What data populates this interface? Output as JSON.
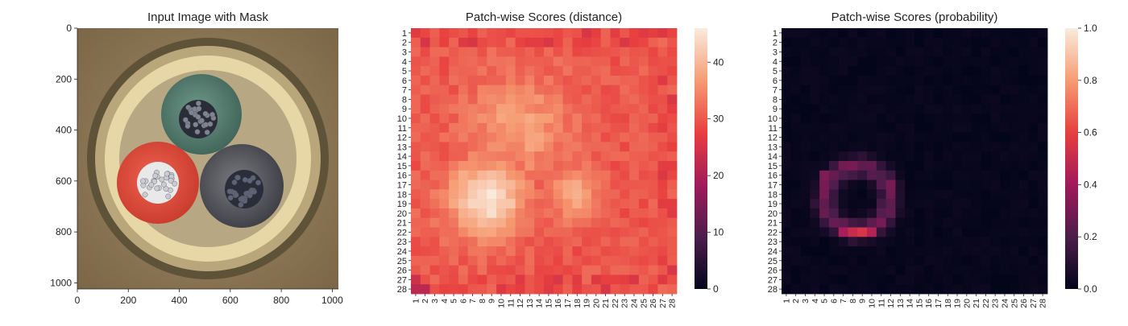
{
  "panels": [
    {
      "title": "Input Image with Mask",
      "image_description_icon": "cable-cross-section-photo",
      "x_ticks": [
        "0",
        "200",
        "400",
        "600",
        "800",
        "1000"
      ],
      "y_ticks": [
        "0",
        "200",
        "400",
        "600",
        "800",
        "1000"
      ],
      "xlim": [
        0,
        1024
      ],
      "ylim": [
        1024,
        0
      ]
    },
    {
      "title": "Patch-wise Scores (distance)",
      "colorbar_ticks": [
        "0",
        "10",
        "20",
        "30",
        "40"
      ],
      "colorbar_range": [
        0,
        46
      ]
    },
    {
      "title": "Patch-wise Scores (probability)",
      "colorbar_ticks": [
        "0.0",
        "0.2",
        "0.4",
        "0.6",
        "0.8",
        "1.0"
      ],
      "colorbar_range": [
        0,
        1
      ]
    }
  ],
  "chart_data": [
    {
      "type": "heatmap",
      "title": "Patch-wise Scores (distance)",
      "rows": [
        "1",
        "2",
        "3",
        "4",
        "5",
        "6",
        "7",
        "8",
        "9",
        "10",
        "11",
        "12",
        "13",
        "14",
        "15",
        "16",
        "17",
        "18",
        "19",
        "20",
        "21",
        "22",
        "23",
        "24",
        "25",
        "26",
        "27",
        "28"
      ],
      "cols": [
        "1",
        "2",
        "3",
        "4",
        "5",
        "6",
        "7",
        "8",
        "9",
        "10",
        "11",
        "12",
        "13",
        "14",
        "15",
        "16",
        "17",
        "18",
        "19",
        "20",
        "21",
        "22",
        "23",
        "24",
        "25",
        "26",
        "27",
        "28"
      ],
      "value_range": [
        0,
        46
      ],
      "model": {
        "baseline": 30,
        "blobs": [
          {
            "row": 18.5,
            "col": 8.5,
            "radius": 3.6,
            "peak": 45
          },
          {
            "row": 11,
            "col": 12,
            "radius": 5,
            "peak": 37
          },
          {
            "row": 18,
            "col": 17.5,
            "radius": 2.5,
            "peak": 38
          }
        ],
        "edge_value": 27
      }
    },
    {
      "type": "heatmap",
      "title": "Patch-wise Scores (probability)",
      "rows": [
        "1",
        "2",
        "3",
        "4",
        "5",
        "6",
        "7",
        "8",
        "9",
        "10",
        "11",
        "12",
        "13",
        "14",
        "15",
        "16",
        "17",
        "18",
        "19",
        "20",
        "21",
        "22",
        "23",
        "24",
        "25",
        "26",
        "27",
        "28"
      ],
      "cols": [
        "1",
        "2",
        "3",
        "4",
        "5",
        "6",
        "7",
        "8",
        "9",
        "10",
        "11",
        "12",
        "13",
        "14",
        "15",
        "16",
        "17",
        "18",
        "19",
        "20",
        "21",
        "22",
        "23",
        "24",
        "25",
        "26",
        "27",
        "28"
      ],
      "value_range": [
        0,
        1
      ],
      "model": {
        "baseline": 0.0,
        "ring": {
          "row": 18.5,
          "col": 8.5,
          "radius": 3.4,
          "peak": 0.3
        },
        "hot_cells": [
          {
            "row": 22,
            "col": 8,
            "value": 0.5
          },
          {
            "row": 22,
            "col": 9,
            "value": 0.55
          },
          {
            "row": 22,
            "col": 7,
            "value": 0.42
          },
          {
            "row": 22,
            "col": 10,
            "value": 0.45
          },
          {
            "row": 16,
            "col": 5,
            "value": 0.32
          },
          {
            "row": 17,
            "col": 5,
            "value": 0.3
          },
          {
            "row": 15,
            "col": 7,
            "value": 0.28
          },
          {
            "row": 17,
            "col": 12,
            "value": 0.3
          }
        ]
      }
    }
  ]
}
